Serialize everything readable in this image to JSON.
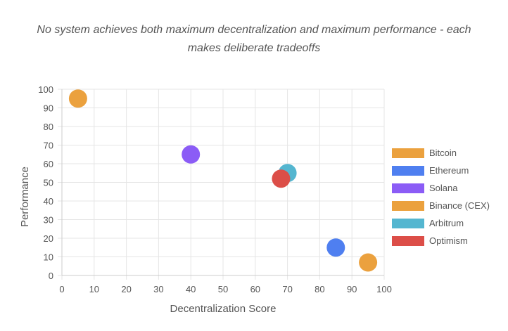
{
  "chart_data": {
    "type": "scatter",
    "subtitle_lines": [
      "No system achieves both maximum decentralization and maximum performance - each",
      "makes deliberate tradeoffs"
    ],
    "xlabel": "Decentralization Score",
    "ylabel": "Performance",
    "xlim": [
      0,
      100
    ],
    "ylim": [
      0,
      100
    ],
    "xticks": [
      0,
      10,
      20,
      30,
      40,
      50,
      60,
      70,
      80,
      90,
      100
    ],
    "yticks": [
      0,
      10,
      20,
      30,
      40,
      50,
      60,
      70,
      80,
      90,
      100
    ],
    "grid": true,
    "legend_position": "right",
    "series": [
      {
        "name": "Bitcoin",
        "color": "#eba13e",
        "points": [
          {
            "x": 5,
            "y": 95
          }
        ]
      },
      {
        "name": "Ethereum",
        "color": "#4f7ff0",
        "points": [
          {
            "x": 85,
            "y": 15
          }
        ]
      },
      {
        "name": "Solana",
        "color": "#8b5cf6",
        "points": [
          {
            "x": 40,
            "y": 65
          }
        ]
      },
      {
        "name": "Binance (CEX)",
        "color": "#eba13e",
        "points": [
          {
            "x": 95,
            "y": 7
          }
        ]
      },
      {
        "name": "Arbitrum",
        "color": "#54b6d0",
        "points": [
          {
            "x": 70,
            "y": 55
          }
        ]
      },
      {
        "name": "Optimism",
        "color": "#dc4e48",
        "points": [
          {
            "x": 68,
            "y": 52
          }
        ]
      }
    ]
  }
}
